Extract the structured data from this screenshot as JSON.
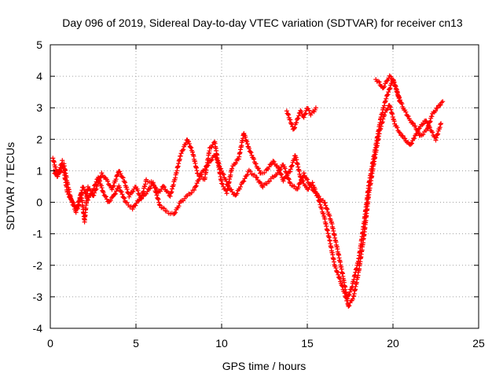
{
  "chart_data": {
    "type": "scatter",
    "title": "Day 096 of 2019, Sidereal Day-to-day VTEC variation (SDTVAR) for receiver cn13",
    "xlabel": "GPS time / hours",
    "ylabel": "SDTVAR / TECUs",
    "xlim": [
      0,
      25
    ],
    "ylim": [
      -4,
      5
    ],
    "xticks": [
      0,
      5,
      10,
      15,
      20,
      25
    ],
    "yticks": [
      -4,
      -3,
      -2,
      -1,
      0,
      1,
      2,
      3,
      4,
      5
    ],
    "grid": true,
    "marker": "plus",
    "color": "#ff0000",
    "series": [
      {
        "x": [
          0.15,
          0.3,
          0.5,
          0.8,
          1.0,
          1.2,
          1.5,
          1.8,
          2.0,
          2.2,
          2.5,
          2.8,
          3.0,
          3.3,
          3.6,
          4.0,
          4.3,
          4.6,
          5.0,
          5.3,
          5.6,
          6.0,
          6.3,
          6.6,
          7.0,
          7.3,
          7.6,
          8.0,
          8.3,
          8.6,
          9.0,
          9.3,
          9.6,
          10.0,
          10.3,
          10.6,
          11.0,
          11.3,
          11.6,
          12.0,
          12.3,
          12.6,
          13.0,
          13.3,
          13.6,
          14.0,
          14.3,
          14.6,
          15.0,
          15.3,
          15.6,
          16.0,
          16.3,
          16.6,
          17.0,
          17.3,
          17.6,
          18.0,
          18.3,
          18.6,
          19.0,
          19.3,
          19.6,
          20.0,
          20.3,
          20.6,
          21.0,
          21.3,
          21.6,
          22.0,
          22.3,
          22.6,
          22.9
        ],
        "y": [
          1.4,
          1.1,
          0.9,
          1.2,
          0.6,
          0.1,
          -0.3,
          0.3,
          -0.6,
          0.5,
          0.2,
          0.6,
          0.9,
          0.7,
          0.4,
          1.0,
          0.7,
          0.2,
          0.5,
          0.1,
          0.7,
          0.6,
          0.3,
          0.5,
          0.2,
          0.8,
          1.5,
          2.0,
          1.6,
          0.9,
          0.7,
          1.7,
          1.9,
          0.6,
          0.3,
          1.1,
          1.4,
          2.2,
          1.7,
          1.2,
          0.9,
          1.0,
          1.3,
          1.1,
          0.7,
          1.0,
          1.5,
          0.8,
          0.4,
          0.6,
          0.2,
          -0.5,
          -1.2,
          -2.0,
          -2.6,
          -3.1,
          -2.7,
          -1.8,
          -0.7,
          0.6,
          1.8,
          2.7,
          3.3,
          3.9,
          3.4,
          3.0,
          2.6,
          2.4,
          2.1,
          2.3,
          2.8,
          3.0,
          3.2
        ]
      },
      {
        "x": [
          0.2,
          0.4,
          0.7,
          1.0,
          1.3,
          1.6,
          1.9,
          2.2,
          2.5,
          2.8,
          3.1,
          3.4,
          3.7,
          4.0,
          4.4,
          4.8,
          5.2,
          5.6,
          6.0,
          6.4,
          6.8,
          7.2,
          7.6,
          8.0,
          8.4,
          8.8,
          9.2,
          9.6,
          10.0,
          10.4,
          10.8,
          11.2,
          11.6,
          12.0,
          12.4,
          12.8,
          13.2,
          13.6,
          14.0,
          14.4,
          14.8,
          15.2,
          15.6,
          16.0,
          16.4,
          16.8,
          17.1,
          17.4,
          17.7,
          18.0,
          18.3,
          18.6,
          18.9,
          19.2,
          19.5,
          19.8,
          20.1,
          20.4,
          20.7,
          21.0,
          21.3,
          21.6,
          21.9,
          22.2,
          22.5,
          22.8
        ],
        "y": [
          1.0,
          0.8,
          1.3,
          0.3,
          0.0,
          -0.2,
          0.5,
          0.1,
          0.4,
          0.8,
          0.3,
          0.0,
          0.2,
          0.5,
          0.0,
          -0.2,
          0.1,
          0.3,
          0.6,
          -0.1,
          -0.3,
          -0.4,
          0.0,
          0.2,
          0.4,
          0.9,
          1.2,
          1.5,
          1.0,
          0.5,
          0.2,
          0.6,
          1.0,
          0.8,
          0.5,
          0.7,
          0.9,
          1.2,
          0.6,
          0.4,
          0.9,
          0.5,
          0.2,
          0.0,
          -0.6,
          -1.6,
          -2.4,
          -3.3,
          -3.0,
          -2.2,
          -1.1,
          0.3,
          1.3,
          2.2,
          2.8,
          3.1,
          2.5,
          2.2,
          2.0,
          1.8,
          2.1,
          2.4,
          2.6,
          2.3,
          2.0,
          2.5
        ]
      },
      {
        "x": [
          13.8,
          14.0,
          14.2,
          14.4,
          14.6,
          14.8,
          15.0,
          15.2,
          15.4,
          15.5
        ],
        "y": [
          2.9,
          2.6,
          2.3,
          2.6,
          2.9,
          2.7,
          3.0,
          2.8,
          2.9,
          3.0
        ]
      },
      {
        "x": [
          19.0,
          19.2,
          19.4,
          19.6,
          19.8,
          20.0,
          20.2,
          20.4
        ],
        "y": [
          3.9,
          3.8,
          3.6,
          3.8,
          4.0,
          3.9,
          3.6,
          3.2
        ]
      }
    ]
  }
}
